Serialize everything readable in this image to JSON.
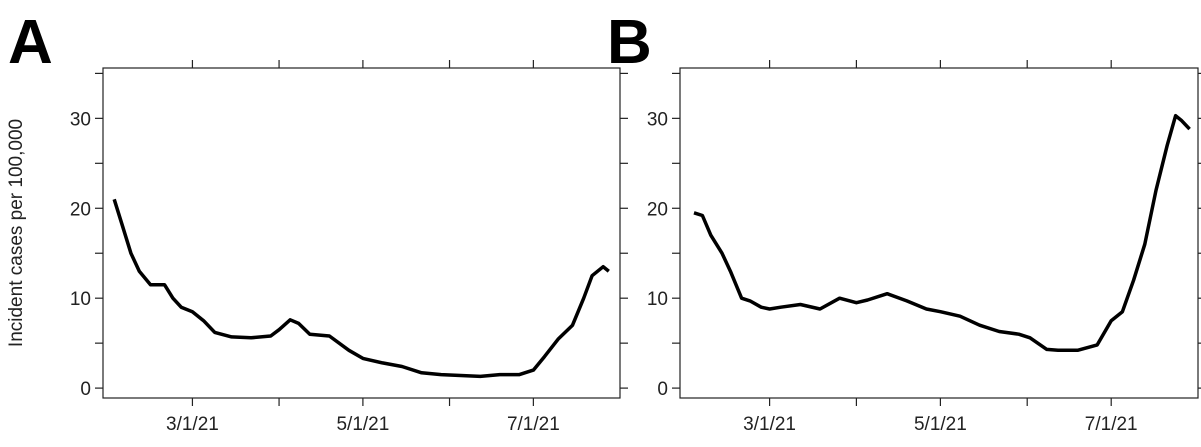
{
  "chart_data": [
    {
      "type": "line",
      "title": "A",
      "y_label": "Incident cases per 100,000",
      "x": [
        "2021-02-01",
        "2021-02-04",
        "2021-02-07",
        "2021-02-10",
        "2021-02-14",
        "2021-02-19",
        "2021-02-22",
        "2021-02-25",
        "2021-03-01",
        "2021-03-05",
        "2021-03-09",
        "2021-03-15",
        "2021-03-22",
        "2021-03-29",
        "2021-04-01",
        "2021-04-05",
        "2021-04-08",
        "2021-04-12",
        "2021-04-19",
        "2021-04-26",
        "2021-05-01",
        "2021-05-08",
        "2021-05-15",
        "2021-05-22",
        "2021-05-29",
        "2021-06-05",
        "2021-06-12",
        "2021-06-19",
        "2021-06-26",
        "2021-07-01",
        "2021-07-05",
        "2021-07-10",
        "2021-07-15",
        "2021-07-19",
        "2021-07-22",
        "2021-07-26",
        "2021-07-28"
      ],
      "series": [
        {
          "color": "#000000",
          "values": [
            21,
            18,
            15,
            13,
            11.5,
            11.5,
            10,
            9,
            8.5,
            7.5,
            6.2,
            5.7,
            5.6,
            5.8,
            6.5,
            7.6,
            7.2,
            6,
            5.8,
            4.2,
            3.3,
            2.8,
            2.4,
            1.7,
            1.5,
            1.4,
            1.3,
            1.5,
            1.5,
            2,
            3.5,
            5.5,
            7,
            10,
            12.5,
            13.5,
            13
          ]
        }
      ],
      "xlim": [
        "2021-01-28",
        "2021-08-01"
      ],
      "xticks": [
        {
          "value": "2021-03-01",
          "label": "3/1/21"
        },
        {
          "value": "2021-05-01",
          "label": "5/1/21"
        },
        {
          "value": "2021-07-01",
          "label": "7/1/21"
        }
      ],
      "xminor_ticks": [
        "2021-04-01",
        "2021-06-01"
      ],
      "ylim": [
        -1.1,
        35.6
      ],
      "yticks": [
        0,
        10,
        20,
        30
      ],
      "yminor_ticks": [
        5,
        15,
        25,
        35
      ]
    },
    {
      "type": "line",
      "title": "B",
      "x": [
        "2021-02-02",
        "2021-02-05",
        "2021-02-08",
        "2021-02-12",
        "2021-02-15",
        "2021-02-19",
        "2021-02-22",
        "2021-02-26",
        "2021-03-01",
        "2021-03-05",
        "2021-03-12",
        "2021-03-19",
        "2021-03-26",
        "2021-04-01",
        "2021-04-05",
        "2021-04-12",
        "2021-04-19",
        "2021-04-26",
        "2021-05-01",
        "2021-05-08",
        "2021-05-15",
        "2021-05-22",
        "2021-05-29",
        "2021-06-02",
        "2021-06-08",
        "2021-06-12",
        "2021-06-19",
        "2021-06-26",
        "2021-07-01",
        "2021-07-05",
        "2021-07-09",
        "2021-07-13",
        "2021-07-17",
        "2021-07-21",
        "2021-07-24",
        "2021-07-26",
        "2021-07-29"
      ],
      "series": [
        {
          "color": "#000000",
          "values": [
            19.5,
            19.2,
            17,
            15,
            13,
            10,
            9.7,
            9,
            8.8,
            9,
            9.3,
            8.8,
            10,
            9.5,
            9.8,
            10.5,
            9.7,
            8.8,
            8.5,
            8,
            7,
            6.3,
            6,
            5.6,
            4.3,
            4.2,
            4.2,
            4.8,
            7.5,
            8.5,
            12,
            16,
            22,
            27,
            30.3,
            29.8,
            28.8
          ]
        }
      ],
      "xlim": [
        "2021-01-28",
        "2021-08-01"
      ],
      "xticks": [
        {
          "value": "2021-03-01",
          "label": "3/1/21"
        },
        {
          "value": "2021-05-01",
          "label": "5/1/21"
        },
        {
          "value": "2021-07-01",
          "label": "7/1/21"
        }
      ],
      "xminor_ticks": [
        "2021-04-01",
        "2021-06-01"
      ],
      "ylim": [
        -1.1,
        35.6
      ],
      "yticks": [
        0,
        10,
        20,
        30
      ],
      "yminor_ticks": [
        5,
        15,
        25,
        35
      ]
    }
  ]
}
